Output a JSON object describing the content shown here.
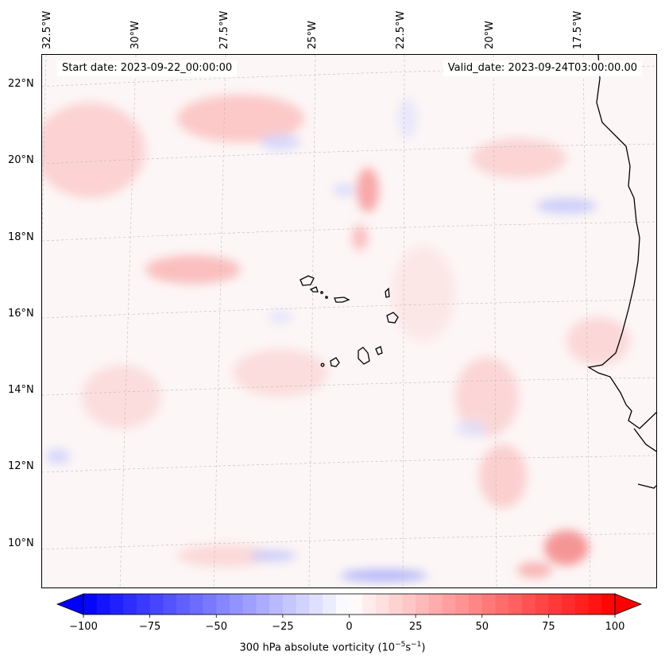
{
  "map": {
    "start_date": "Start date: 2023-09-22_00:00:00",
    "valid_date": "Valid_date: 2023-09-24T03:00:00.00",
    "lon_labels": [
      "32.5°W",
      "30°W",
      "27.5°W",
      "25°W",
      "22.5°W",
      "20°W",
      "17.5°W"
    ],
    "lat_labels": [
      "22°N",
      "20°N",
      "18°N",
      "16°N",
      "14°N",
      "12°N",
      "10°N"
    ],
    "field": "300 hPa absolute vorticity",
    "colormap": "bwr",
    "colors": {
      "negative": "#0000ff",
      "neutral": "#ffffff",
      "positive": "#ff0000"
    }
  },
  "colorbar": {
    "title_prefix": "300 hPa absolute vorticity (10",
    "title_exp1": "−5",
    "title_mid": "s",
    "title_exp2": "−1",
    "title_suffix": ")",
    "min": -100,
    "max": 100,
    "tick_labels": [
      "−100",
      "−75",
      "−50",
      "−25",
      "0",
      "25",
      "50",
      "75",
      "100"
    ],
    "extend": "both"
  }
}
